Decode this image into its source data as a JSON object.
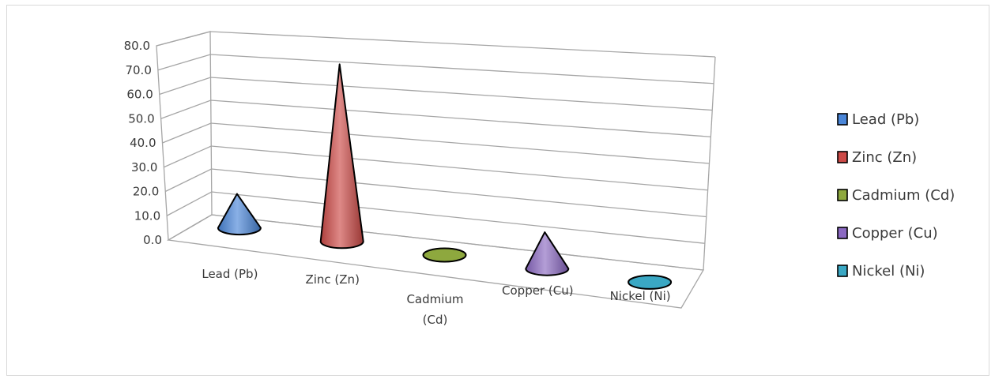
{
  "chart_data": {
    "type": "bar",
    "shape": "3d-cone",
    "title": "",
    "xlabel": "",
    "ylabel": "",
    "ylim": [
      0,
      80
    ],
    "y_ticks": [
      "0.0",
      "10.0",
      "20.0",
      "30.0",
      "40.0",
      "50.0",
      "60.0",
      "70.0",
      "80.0"
    ],
    "grid": true,
    "legend_position": "right",
    "categories": [
      "Lead (Pb)",
      "Zinc (Zn)",
      "Cadmium (Cd)",
      "Copper (Cu)",
      "Nickel (Ni)"
    ],
    "category_label_lines": [
      [
        "Lead (Pb)"
      ],
      [
        "Zinc (Zn)"
      ],
      [
        "Cadmium",
        "(Cd)"
      ],
      [
        "Copper (Cu)"
      ],
      [
        "Nickel (Ni)"
      ]
    ],
    "values": [
      14,
      73,
      0.5,
      15,
      0.5
    ],
    "series_names": [
      "Lead (Pb)",
      "Zinc (Zn)",
      "Cadmium (Cd)",
      "Copper (Cu)",
      "Nickel (Ni)"
    ],
    "colors": [
      "#4a86d8",
      "#cc4a47",
      "#8ea83e",
      "#8b69c2",
      "#3aa8c4"
    ]
  }
}
